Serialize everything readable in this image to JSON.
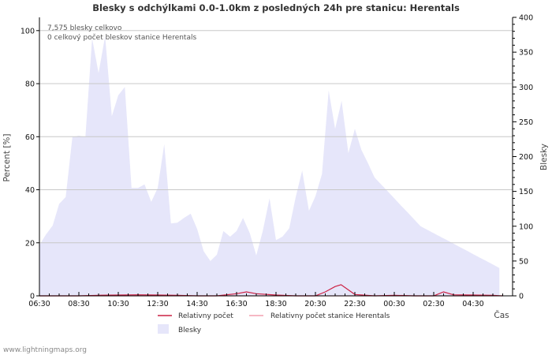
{
  "chart_data": {
    "type": "area",
    "title": "Blesky s odchýlkami 0.0-1.0km z posledných 24h pre stanicu: Herentals",
    "ylabel_left": "Percent   [%]",
    "ylabel_right": "Blesky",
    "xlabel": "Čas",
    "y_left_range": [
      0,
      105
    ],
    "y_left_ticks": [
      0,
      20,
      40,
      60,
      80,
      100
    ],
    "y_right_range": [
      0,
      400
    ],
    "y_right_ticks": [
      0,
      50,
      100,
      150,
      200,
      250,
      300,
      350,
      400
    ],
    "x_range_hours": [
      6.5,
      30.5
    ],
    "x_ticks": [
      {
        "label": "06:30",
        "hour": 6.5
      },
      {
        "label": "08:30",
        "hour": 8.5
      },
      {
        "label": "10:30",
        "hour": 10.5
      },
      {
        "label": "12:30",
        "hour": 12.5
      },
      {
        "label": "14:30",
        "hour": 14.5
      },
      {
        "label": "16:30",
        "hour": 16.5
      },
      {
        "label": "18:30",
        "hour": 18.5
      },
      {
        "label": "20:30",
        "hour": 20.5
      },
      {
        "label": "22:30",
        "hour": 22.5
      },
      {
        "label": "00:30",
        "hour": 24.5
      },
      {
        "label": "02:30",
        "hour": 26.5
      },
      {
        "label": "04:30",
        "hour": 28.5
      }
    ],
    "annotations": [
      "7,575 blesky celkovo",
      "0 celkový počet bleskov stanice Herentals"
    ],
    "series": [
      {
        "name": "Blesky",
        "axis": "right",
        "color": "#e6e6fa",
        "x": [
          6.5,
          6.83,
          7.17,
          7.5,
          7.83,
          8.17,
          8.5,
          8.83,
          9.17,
          9.5,
          9.83,
          10.17,
          10.5,
          10.83,
          11.17,
          11.5,
          11.83,
          12.17,
          12.5,
          12.83,
          13.17,
          13.5,
          13.83,
          14.17,
          14.5,
          14.83,
          15.17,
          15.5,
          15.83,
          16.17,
          16.5,
          16.83,
          17.17,
          17.5,
          17.83,
          18.17,
          18.5,
          18.83,
          19.17,
          19.5,
          19.83,
          20.17,
          20.5,
          20.83,
          21.17,
          21.5,
          21.83,
          22.17,
          22.5,
          22.83,
          23.17,
          23.5,
          23.83,
          24.17,
          24.5,
          24.83,
          25.17,
          25.5,
          25.83,
          26.17,
          26.5,
          26.83,
          27.17,
          27.5,
          27.83,
          28.17,
          28.5,
          28.83,
          29.17,
          29.5,
          29.83
        ],
        "values": [
          73,
          88,
          101,
          132,
          142,
          228,
          230,
          228,
          370,
          320,
          373,
          258,
          288,
          300,
          155,
          155,
          160,
          135,
          155,
          218,
          104,
          105,
          112,
          118,
          96,
          64,
          50,
          59,
          93,
          85,
          93,
          112,
          90,
          58,
          93,
          140,
          80,
          85,
          97,
          142,
          180,
          122,
          143,
          175,
          295,
          240,
          280,
          205,
          240,
          210,
          190,
          170,
          160,
          150,
          140,
          130,
          120,
          110,
          100,
          95,
          90,
          85,
          80,
          75,
          70,
          65,
          60,
          55,
          50,
          45,
          40
        ]
      },
      {
        "name": "Relativny počet",
        "axis": "left",
        "color": "#cc2244",
        "x": [
          6.5,
          7.5,
          8.5,
          9.5,
          10.5,
          11.5,
          12.5,
          13.5,
          14.5,
          15.5,
          16.5,
          17.0,
          17.5,
          18.5,
          19.5,
          20.5,
          21.0,
          21.5,
          21.8,
          22.5,
          23.5,
          24.5,
          25.5,
          26.5,
          27.0,
          27.5,
          28.5,
          29.5,
          30.0
        ],
        "values": [
          0,
          0,
          0,
          0.2,
          0.3,
          0.4,
          0.3,
          0.2,
          0,
          0,
          0.8,
          1.5,
          0.8,
          0.3,
          0,
          0,
          1.5,
          3.5,
          4.2,
          0.5,
          0,
          0.2,
          0,
          0,
          1.5,
          0.4,
          0.3,
          0.2,
          0
        ]
      },
      {
        "name": "Relativny počet stanice Herentals",
        "axis": "left",
        "color": "#f4a0b0",
        "x": [
          6.5,
          30.0
        ],
        "values": [
          0,
          0
        ]
      }
    ],
    "credit": "www.lightningmaps.org"
  }
}
